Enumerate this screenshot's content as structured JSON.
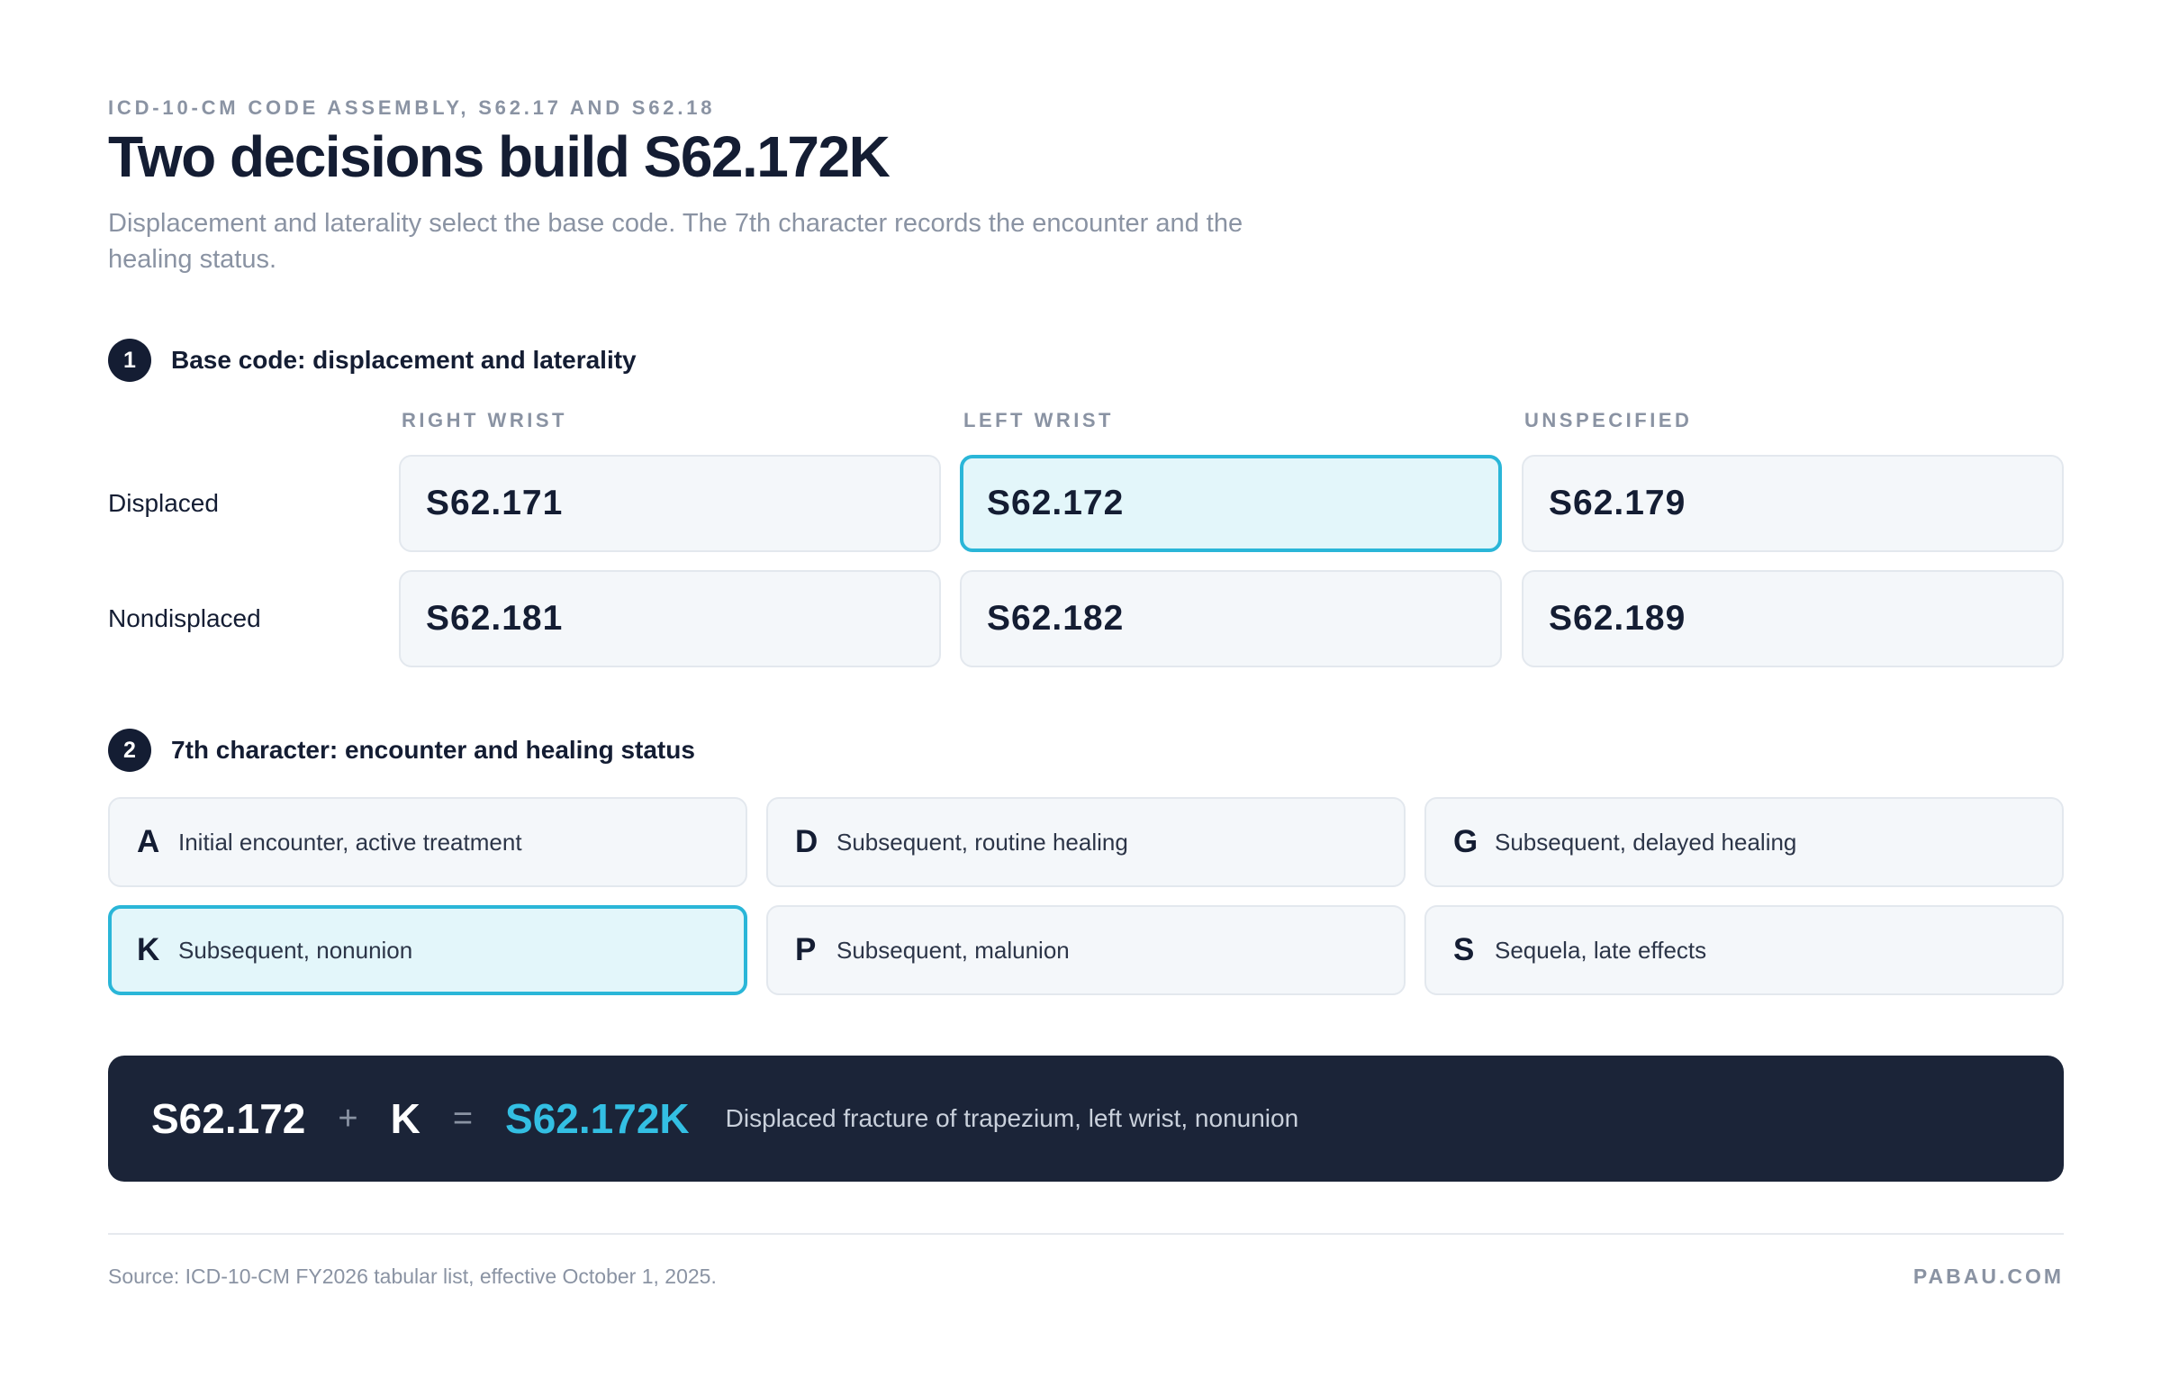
{
  "header": {
    "eyebrow": "ICD-10-CM CODE ASSEMBLY, S62.17 AND S62.18",
    "title": "Two decisions build S62.172K",
    "subtitle": "Displacement and laterality select the base code. The 7th character records the encounter and the healing status."
  },
  "step1": {
    "number": "1",
    "label": "Base code: displacement and laterality",
    "columns": [
      "RIGHT WRIST",
      "LEFT WRIST",
      "UNSPECIFIED"
    ],
    "rows": [
      {
        "label": "Displaced",
        "codes": [
          "S62.171",
          "S62.172",
          "S62.179"
        ]
      },
      {
        "label": "Nondisplaced",
        "codes": [
          "S62.181",
          "S62.182",
          "S62.189"
        ]
      }
    ],
    "selected": "S62.172"
  },
  "step2": {
    "number": "2",
    "label": "7th character: encounter and healing status",
    "options": [
      {
        "letter": "A",
        "desc": "Initial encounter, active treatment"
      },
      {
        "letter": "D",
        "desc": "Subsequent, routine healing"
      },
      {
        "letter": "G",
        "desc": "Subsequent, delayed healing"
      },
      {
        "letter": "K",
        "desc": "Subsequent, nonunion"
      },
      {
        "letter": "P",
        "desc": "Subsequent, malunion"
      },
      {
        "letter": "S",
        "desc": "Sequela, late effects"
      }
    ],
    "selected": "K"
  },
  "result": {
    "base": "S62.172",
    "plus": "+",
    "char": "K",
    "equals": "=",
    "full": "S62.172K",
    "desc": "Displaced fracture of trapezium, left wrist, nonunion"
  },
  "footer": {
    "source": "Source: ICD-10-CM FY2026 tabular list, effective October 1, 2025.",
    "brand": "PABAU.COM"
  },
  "colors": {
    "navy": "#141d33",
    "accent": "#2ab6d8",
    "selected_fill": "#e3f6fa",
    "cell_fill": "#f4f7fa",
    "result_bg": "#1b2438",
    "result_highlight": "#33bfe3"
  }
}
